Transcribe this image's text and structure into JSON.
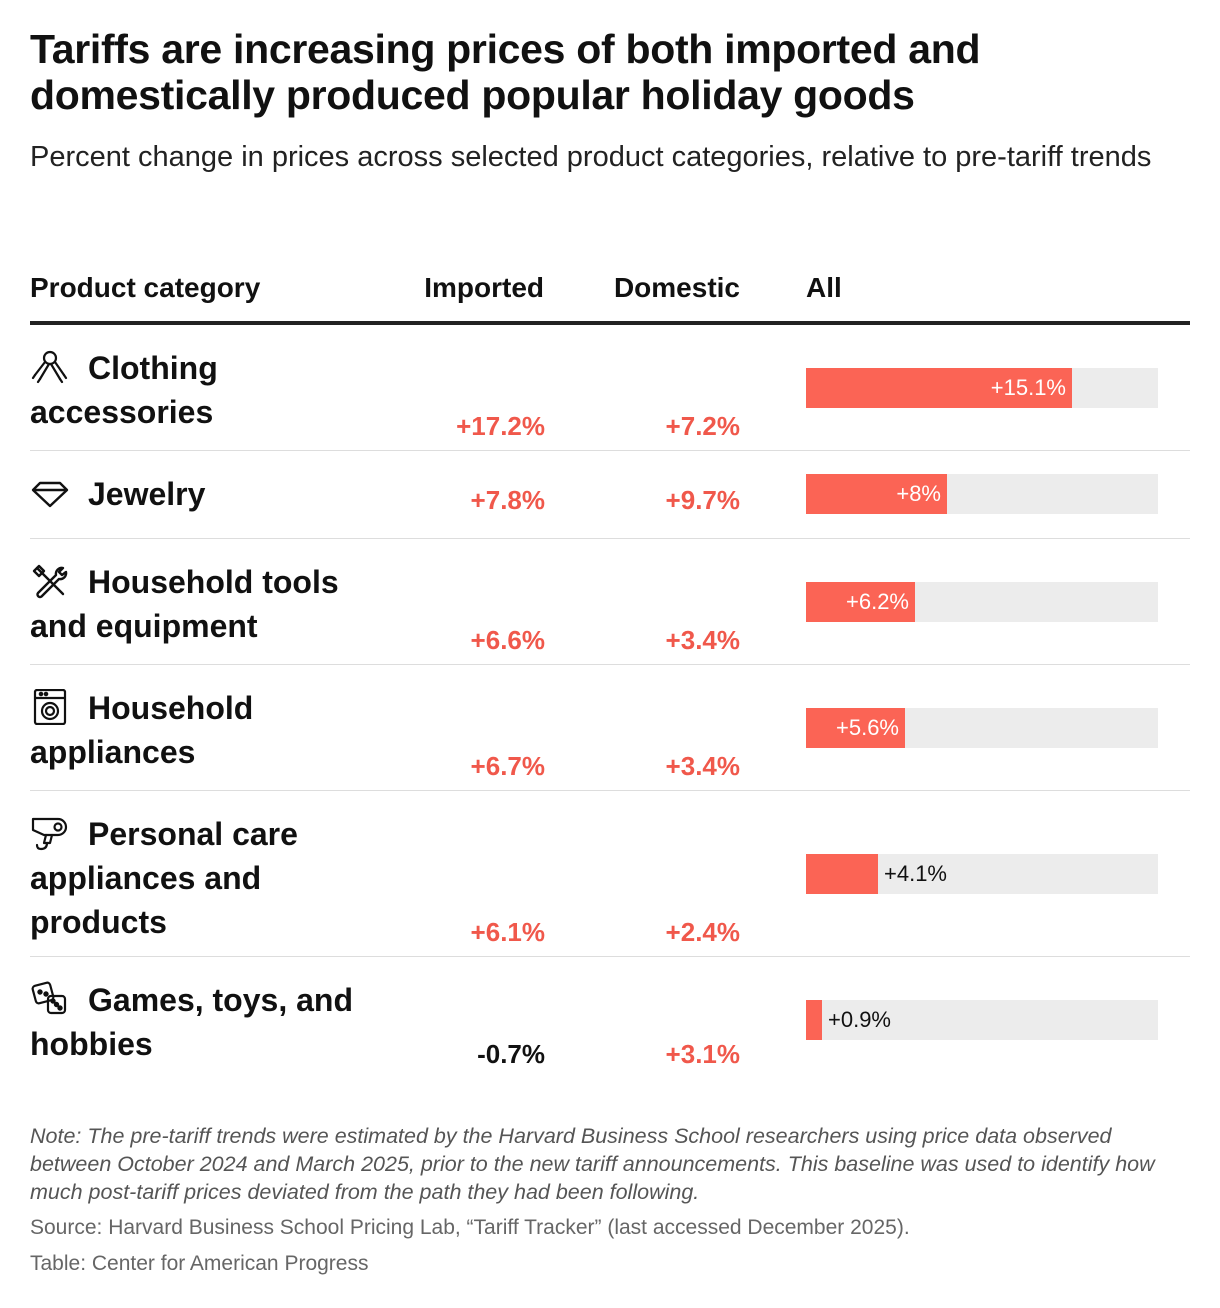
{
  "title": "Tariffs are increasing prices of both imported and domestically produced popular holiday goods",
  "subtitle": "Percent change in prices across selected product categories, relative to pre-tariff trends",
  "columns": {
    "category": "Product category",
    "imported": "Imported",
    "domestic": "Domestic",
    "all": "All"
  },
  "colors": {
    "accent": "#fb6455",
    "positive_text": "#f0584b",
    "track": "#ececec",
    "rule": "#222222"
  },
  "chart_data": {
    "type": "table",
    "bar_column": "All",
    "bar_max": 20,
    "rows": [
      {
        "category": "Clothing accessories",
        "icon": "scarf-icon",
        "imported": "+17.2%",
        "domestic": "+7.2%",
        "all": "+15.1%",
        "all_value": 15.1
      },
      {
        "category": "Jewelry",
        "icon": "diamond-icon",
        "imported": "+7.8%",
        "domestic": "+9.7%",
        "all": "+8%",
        "all_value": 8.0
      },
      {
        "category": "Household tools and equipment",
        "icon": "tools-icon",
        "imported": "+6.6%",
        "domestic": "+3.4%",
        "all": "+6.2%",
        "all_value": 6.2
      },
      {
        "category": "Household appliances",
        "icon": "washing-machine-icon",
        "imported": "+6.7%",
        "domestic": "+3.4%",
        "all": "+5.6%",
        "all_value": 5.6
      },
      {
        "category": "Personal care appliances and products",
        "icon": "hair-dryer-icon",
        "imported": "+6.1%",
        "domestic": "+2.4%",
        "all": "+4.1%",
        "all_value": 4.1
      },
      {
        "category": "Games, toys, and hobbies",
        "icon": "dice-icon",
        "imported": "-0.7%",
        "domestic": "+3.1%",
        "all": "+0.9%",
        "all_value": 0.9
      }
    ]
  },
  "note": "Note: The pre-tariff trends were estimated by the Harvard Business School researchers using price data observed between October 2024 and March 2025, prior to the new tariff announcements. This baseline was used to identify how much post-tariff prices deviated from the path they had been following.",
  "source": "Source: Harvard Business School Pricing Lab, “Tariff Tracker” (last accessed December 2025).",
  "credit": "Table: Center for American Progress"
}
